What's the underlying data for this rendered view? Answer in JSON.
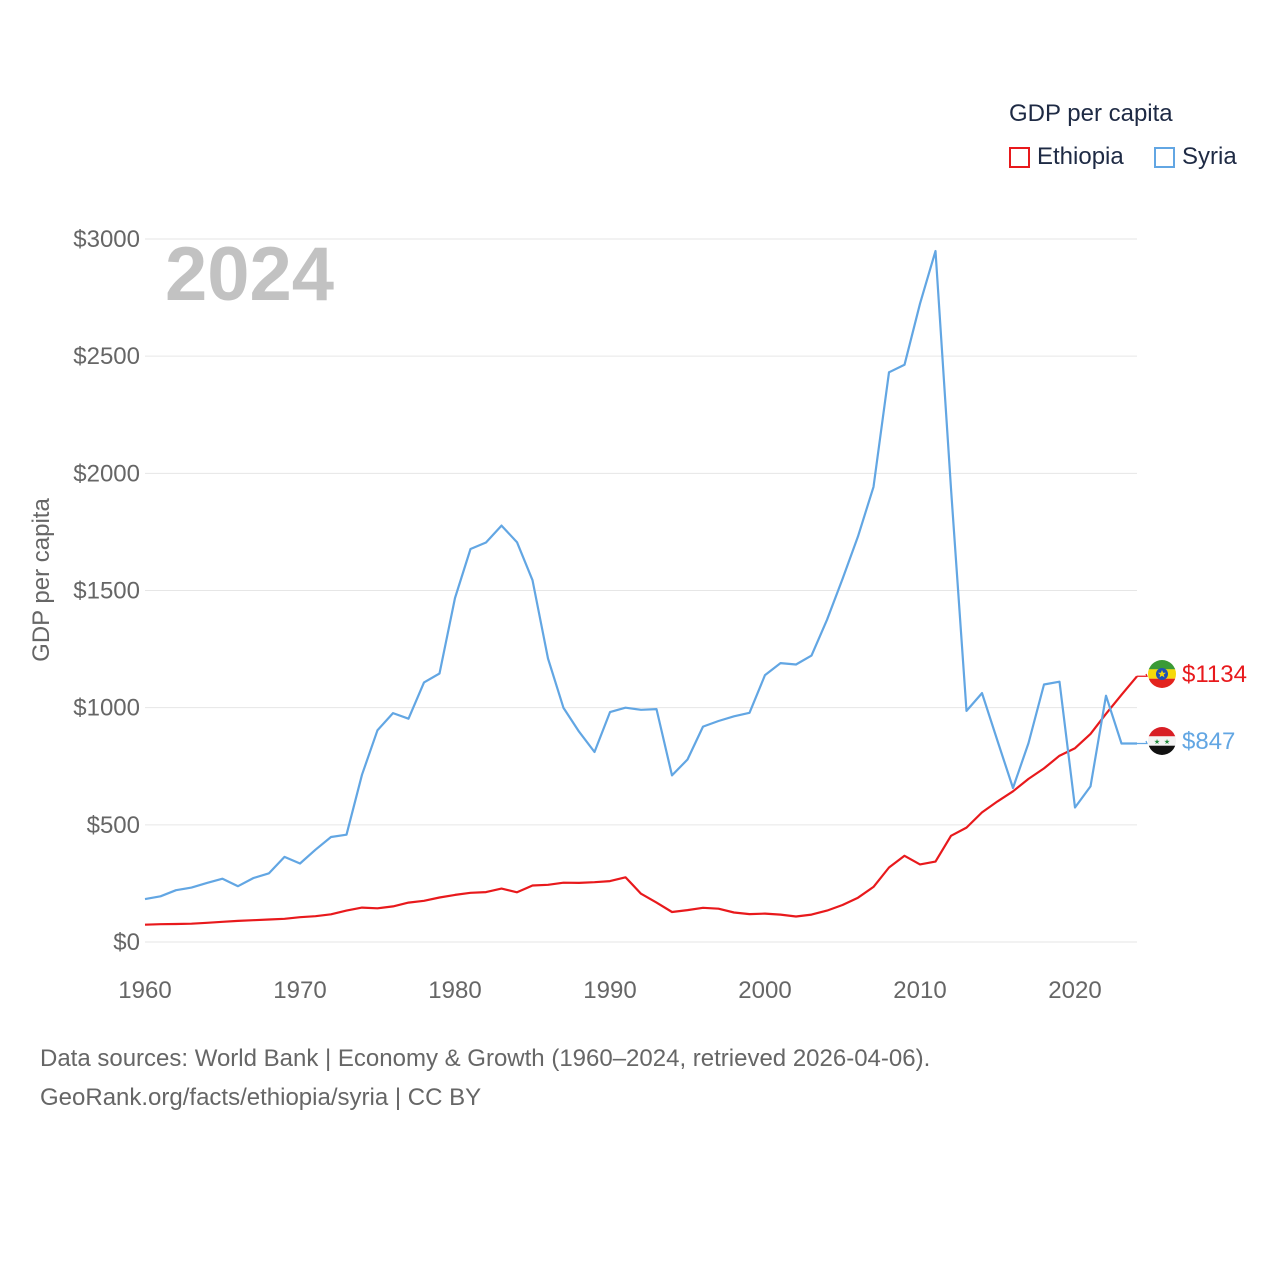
{
  "legend": {
    "title": "GDP per capita",
    "items": [
      {
        "label": "Ethiopia",
        "color": "#e8191c"
      },
      {
        "label": "Syria",
        "color": "#62a6e3"
      }
    ]
  },
  "year_watermark": "2024",
  "end_labels": {
    "ethiopia": "$1134",
    "syria": "$847"
  },
  "footer": {
    "line1": "Data sources: World Bank | Economy & Growth (1960–2024, retrieved 2026-04-06).",
    "line2": "GeoRank.org/facts/ethiopia/syria | CC BY"
  },
  "chart_data": {
    "type": "line",
    "title": "",
    "xlabel": "",
    "ylabel": "GDP per capita",
    "xlim": [
      1960,
      2024
    ],
    "ylim": [
      0,
      3000
    ],
    "x_ticks": [
      1960,
      1970,
      1980,
      1990,
      2000,
      2010,
      2020
    ],
    "x_tick_labels": [
      "1960",
      "1970",
      "1980",
      "1990",
      "2000",
      "2010",
      "2020"
    ],
    "y_ticks": [
      0,
      500,
      1000,
      1500,
      2000,
      2500,
      3000
    ],
    "y_tick_labels": [
      "$0",
      "$500",
      "$1000",
      "$1500",
      "$2000",
      "$2500",
      "$3000"
    ],
    "grid": true,
    "legend_position": "top-right",
    "series": [
      {
        "name": "Ethiopia",
        "color": "#e8191c",
        "points": [
          [
            1960,
            74
          ],
          [
            1961,
            76
          ],
          [
            1962,
            77
          ],
          [
            1963,
            78
          ],
          [
            1964,
            82
          ],
          [
            1965,
            86
          ],
          [
            1966,
            90
          ],
          [
            1967,
            93
          ],
          [
            1968,
            96
          ],
          [
            1969,
            99
          ],
          [
            1970,
            106
          ],
          [
            1971,
            110
          ],
          [
            1972,
            118
          ],
          [
            1973,
            134
          ],
          [
            1974,
            147
          ],
          [
            1975,
            144
          ],
          [
            1976,
            152
          ],
          [
            1977,
            168
          ],
          [
            1978,
            176
          ],
          [
            1979,
            190
          ],
          [
            1980,
            201
          ],
          [
            1981,
            210
          ],
          [
            1982,
            213
          ],
          [
            1983,
            228
          ],
          [
            1984,
            212
          ],
          [
            1985,
            241
          ],
          [
            1986,
            244
          ],
          [
            1987,
            253
          ],
          [
            1988,
            252
          ],
          [
            1989,
            255
          ],
          [
            1990,
            260
          ],
          [
            1991,
            276
          ],
          [
            1992,
            206
          ],
          [
            1993,
            168
          ],
          [
            1994,
            128
          ],
          [
            1995,
            136
          ],
          [
            1996,
            146
          ],
          [
            1997,
            142
          ],
          [
            1998,
            126
          ],
          [
            1999,
            119
          ],
          [
            2000,
            121
          ],
          [
            2001,
            117
          ],
          [
            2002,
            109
          ],
          [
            2003,
            117
          ],
          [
            2004,
            134
          ],
          [
            2005,
            158
          ],
          [
            2006,
            189
          ],
          [
            2007,
            235
          ],
          [
            2008,
            318
          ],
          [
            2009,
            368
          ],
          [
            2010,
            331
          ],
          [
            2011,
            343
          ],
          [
            2012,
            453
          ],
          [
            2013,
            488
          ],
          [
            2014,
            553
          ],
          [
            2015,
            600
          ],
          [
            2016,
            643
          ],
          [
            2017,
            696
          ],
          [
            2018,
            741
          ],
          [
            2019,
            795
          ],
          [
            2020,
            827
          ],
          [
            2021,
            888
          ],
          [
            2022,
            974
          ],
          [
            2023,
            1055
          ],
          [
            2024,
            1134
          ]
        ]
      },
      {
        "name": "Syria",
        "color": "#62a6e3",
        "points": [
          [
            1960,
            183
          ],
          [
            1961,
            195
          ],
          [
            1962,
            221
          ],
          [
            1963,
            232
          ],
          [
            1964,
            252
          ],
          [
            1965,
            270
          ],
          [
            1966,
            238
          ],
          [
            1967,
            273
          ],
          [
            1968,
            293
          ],
          [
            1969,
            363
          ],
          [
            1970,
            335
          ],
          [
            1971,
            394
          ],
          [
            1972,
            448
          ],
          [
            1973,
            458
          ],
          [
            1974,
            714
          ],
          [
            1975,
            904
          ],
          [
            1976,
            977
          ],
          [
            1977,
            953
          ],
          [
            1978,
            1108
          ],
          [
            1979,
            1146
          ],
          [
            1980,
            1468
          ],
          [
            1981,
            1677
          ],
          [
            1982,
            1705
          ],
          [
            1983,
            1777
          ],
          [
            1984,
            1706
          ],
          [
            1985,
            1544
          ],
          [
            1986,
            1210
          ],
          [
            1987,
            999
          ],
          [
            1988,
            898
          ],
          [
            1989,
            811
          ],
          [
            1990,
            981
          ],
          [
            1991,
            1000
          ],
          [
            1992,
            991
          ],
          [
            1993,
            994
          ],
          [
            1994,
            711
          ],
          [
            1995,
            779
          ],
          [
            1996,
            919
          ],
          [
            1997,
            943
          ],
          [
            1998,
            963
          ],
          [
            1999,
            978
          ],
          [
            2000,
            1139
          ],
          [
            2001,
            1190
          ],
          [
            2002,
            1184
          ],
          [
            2003,
            1222
          ],
          [
            2004,
            1375
          ],
          [
            2005,
            1549
          ],
          [
            2006,
            1731
          ],
          [
            2007,
            1942
          ],
          [
            2008,
            2431
          ],
          [
            2009,
            2463
          ],
          [
            2010,
            2724
          ],
          [
            2011,
            2949
          ],
          [
            2012,
            1935
          ],
          [
            2013,
            986
          ],
          [
            2014,
            1062
          ],
          [
            2015,
            858
          ],
          [
            2016,
            657
          ],
          [
            2017,
            849
          ],
          [
            2018,
            1099
          ],
          [
            2019,
            1111
          ],
          [
            2020,
            574
          ],
          [
            2021,
            664
          ],
          [
            2022,
            1051
          ],
          [
            2023,
            847
          ],
          [
            2024,
            847
          ]
        ]
      }
    ]
  }
}
